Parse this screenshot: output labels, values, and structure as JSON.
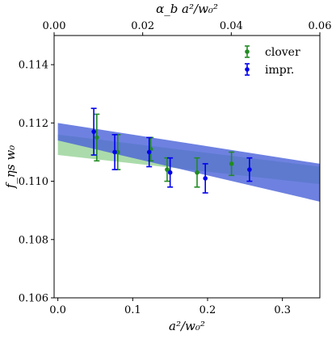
{
  "chart_data": {
    "type": "scatter",
    "xlabel": "a²/w₀²",
    "ylabel": "f_ηs w₀",
    "top_xlabel": "α_b a²/w₀²",
    "xlim": [
      -0.005,
      0.35
    ],
    "ylim": [
      0.106,
      0.115
    ],
    "top_xlim": [
      0.0,
      0.06
    ],
    "x_ticks": [
      "0.0",
      "0.1",
      "0.2",
      "0.3"
    ],
    "x_tick_values": [
      0.0,
      0.1,
      0.2,
      0.3
    ],
    "y_ticks": [
      "0.106",
      "0.108",
      "0.110",
      "0.112",
      "0.114"
    ],
    "y_tick_values": [
      0.106,
      0.108,
      0.11,
      0.112,
      0.114
    ],
    "top_x_ticks": [
      "0.00",
      "0.02",
      "0.04",
      "0.06"
    ],
    "top_x_tick_values": [
      0.0,
      0.02,
      0.04,
      0.06
    ],
    "grid": false,
    "legend_position": "top-right",
    "series": [
      {
        "name": "clover",
        "color": "#228B22",
        "band_color": "#8fcf8f",
        "band": {
          "x": [
            0.0,
            0.35
          ],
          "upper": [
            0.1116,
            0.1105
          ],
          "lower": [
            0.1109,
            0.1099
          ]
        },
        "points": [
          {
            "x": 0.052,
            "y": 0.1115,
            "err": 0.0008
          },
          {
            "x": 0.08,
            "y": 0.111,
            "err": 0.0006
          },
          {
            "x": 0.124,
            "y": 0.1111,
            "err": 0.0004
          },
          {
            "x": 0.146,
            "y": 0.1104,
            "err": 0.0004
          },
          {
            "x": 0.186,
            "y": 0.1103,
            "err": 0.0005
          },
          {
            "x": 0.232,
            "y": 0.1106,
            "err": 0.0004
          }
        ]
      },
      {
        "name": "impr.",
        "color": "#0000ee",
        "band_color": "#4a62d8",
        "band": {
          "x": [
            0.0,
            0.35
          ],
          "upper": [
            0.112,
            0.1106
          ],
          "lower": [
            0.1114,
            0.1093
          ]
        },
        "points": [
          {
            "x": 0.048,
            "y": 0.1117,
            "err": 0.0008
          },
          {
            "x": 0.076,
            "y": 0.111,
            "err": 0.0006
          },
          {
            "x": 0.122,
            "y": 0.111,
            "err": 0.0005
          },
          {
            "x": 0.15,
            "y": 0.1103,
            "err": 0.0005
          },
          {
            "x": 0.197,
            "y": 0.1101,
            "err": 0.0005
          },
          {
            "x": 0.256,
            "y": 0.1104,
            "err": 0.0004
          }
        ]
      }
    ]
  }
}
